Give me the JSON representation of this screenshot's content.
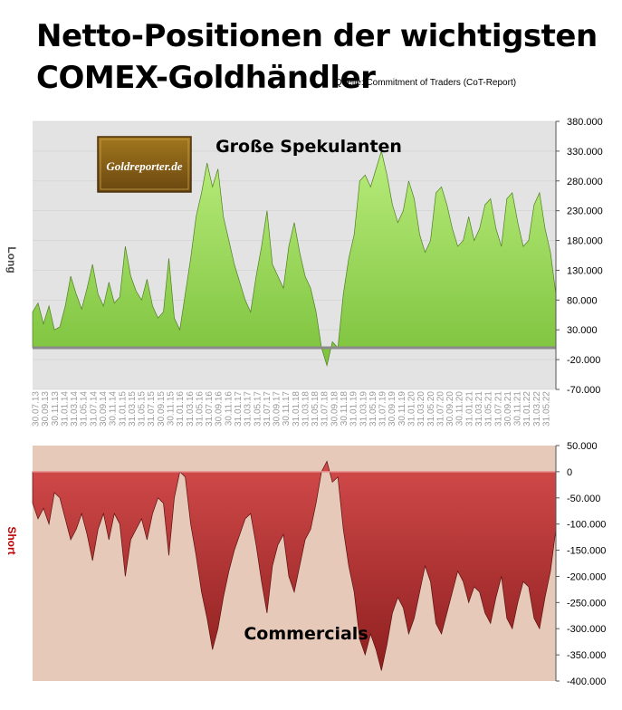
{
  "header": {
    "title_line1": "Netto-Positionen der wichtigsten",
    "title_line2": "COMEX-Goldhändler",
    "source": "Quelle: Commitment of Traders (CoT-Report)"
  },
  "logo": {
    "text": "Goldreporter.de"
  },
  "colors": {
    "long_fill": "#96d453",
    "short_fill": "#b83434",
    "top_bg": "#e3e3e3",
    "bottom_bg": "#e6c9b8"
  },
  "chart_data": [
    {
      "type": "area",
      "label": "Große Spekulanten",
      "ylabel": "Long",
      "ylim": [
        -70000,
        380000
      ],
      "yticks": [
        "380.000",
        "330.000",
        "280.000",
        "230.000",
        "180.000",
        "130.000",
        "80.000",
        "30.000",
        "-20.000",
        "-70.000"
      ],
      "xticks": [
        "30.07.13",
        "30.09.13",
        "30.11.13",
        "31.01.14",
        "31.03.14",
        "31.05.14",
        "31.07.14",
        "30.09.14",
        "30.11.14",
        "31.01.15",
        "31.03.15",
        "31.05.15",
        "31.07.15",
        "30.09.15",
        "30.11.15",
        "31.01.16",
        "31.03.16",
        "31.05.16",
        "31.07.16",
        "30.09.16",
        "30.11.16",
        "31.01.17",
        "31.03.17",
        "31.05.17",
        "31.07.17",
        "30.09.17",
        "30.11.17",
        "31.01.18",
        "31.03.18",
        "31.05.18",
        "31.07.18",
        "30.09.18",
        "30.11.18",
        "31.01.19",
        "31.03.19",
        "31.05.19",
        "31.07.19",
        "30.09.19",
        "30.11.19",
        "31.01.20",
        "31.03.20",
        "31.05.20",
        "31.07.20",
        "30.09.20",
        "30.11.20",
        "31.01.21",
        "31.03.21",
        "31.05.21",
        "31.07.21",
        "30.09.21",
        "30.11.21",
        "31.01.22",
        "31.03.22",
        "31.05.22"
      ],
      "series": [
        {
          "values": [
            60000,
            75000,
            40000,
            70000,
            30000,
            35000,
            70000,
            120000,
            90000,
            65000,
            100000,
            140000,
            90000,
            70000,
            110000,
            75000,
            85000,
            170000,
            120000,
            95000,
            80000,
            115000,
            70000,
            50000,
            60000,
            150000,
            50000,
            30000,
            90000,
            150000,
            220000,
            260000,
            310000,
            270000,
            300000,
            220000,
            180000,
            140000,
            110000,
            80000,
            60000,
            120000,
            170000,
            230000,
            140000,
            120000,
            100000,
            170000,
            210000,
            160000,
            120000,
            100000,
            60000,
            0,
            -30000,
            10000,
            0,
            90000,
            150000,
            190000,
            280000,
            290000,
            270000,
            300000,
            330000,
            290000,
            240000,
            210000,
            230000,
            280000,
            250000,
            190000,
            160000,
            180000,
            260000,
            270000,
            240000,
            200000,
            170000,
            180000,
            220000,
            180000,
            200000,
            240000,
            250000,
            200000,
            170000,
            250000,
            260000,
            210000,
            170000,
            180000,
            240000,
            260000,
            200000,
            160000,
            90000
          ]
        }
      ]
    },
    {
      "type": "area",
      "label": "Commercials",
      "ylabel": "Short",
      "ylim": [
        -400000,
        50000
      ],
      "yticks": [
        "50.000",
        "0",
        "-50.000",
        "-100.000",
        "-150.000",
        "-200.000",
        "-250.000",
        "-300.000",
        "-350.000",
        "-400.000"
      ],
      "series": [
        {
          "values": [
            -60000,
            -90000,
            -70000,
            -100000,
            -40000,
            -50000,
            -90000,
            -130000,
            -110000,
            -80000,
            -120000,
            -170000,
            -110000,
            -80000,
            -130000,
            -80000,
            -100000,
            -200000,
            -130000,
            -110000,
            -90000,
            -130000,
            -80000,
            -50000,
            -60000,
            -160000,
            -50000,
            0,
            -10000,
            -100000,
            -160000,
            -230000,
            -280000,
            -340000,
            -300000,
            -240000,
            -190000,
            -150000,
            -120000,
            -90000,
            -80000,
            -140000,
            -210000,
            -270000,
            -180000,
            -140000,
            -120000,
            -200000,
            -230000,
            -180000,
            -130000,
            -110000,
            -60000,
            0,
            20000,
            -20000,
            -10000,
            -110000,
            -180000,
            -230000,
            -320000,
            -350000,
            -310000,
            -340000,
            -380000,
            -330000,
            -270000,
            -240000,
            -260000,
            -310000,
            -280000,
            -230000,
            -180000,
            -210000,
            -290000,
            -310000,
            -270000,
            -230000,
            -190000,
            -210000,
            -250000,
            -220000,
            -230000,
            -270000,
            -290000,
            -240000,
            -200000,
            -280000,
            -300000,
            -250000,
            -210000,
            -220000,
            -280000,
            -300000,
            -240000,
            -190000,
            -110000
          ]
        }
      ]
    }
  ]
}
